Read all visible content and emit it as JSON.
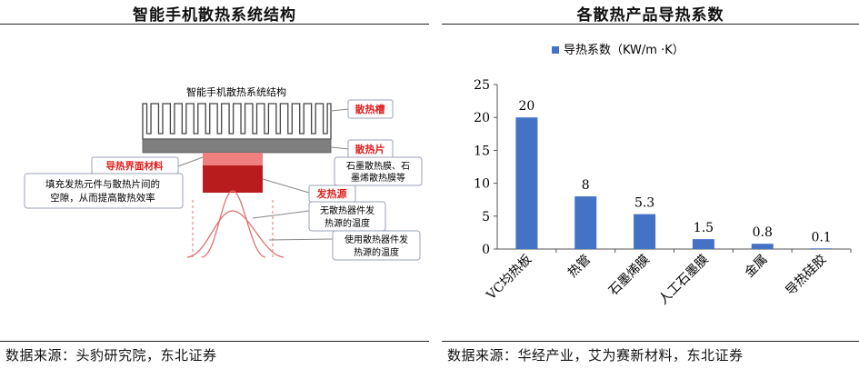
{
  "left": {
    "title": "智能手机散热系统结构",
    "source": "数据来源：头豹研究院，东北证券",
    "diagram": {
      "heading": "智能手机散热系统结构",
      "label_fins": "散热槽",
      "label_plate": "散热片",
      "label_plate_desc_1": "石墨散热膜、石",
      "label_plate_desc_2": "墨烯散热膜等",
      "label_interface": "导热界面材料",
      "label_interface_desc_1": "填充发热元件与散热片间的",
      "label_interface_desc_2": "空隙，从而提高散热效率",
      "label_source": "发热源",
      "label_no_device_1": "无散热器件发",
      "label_no_device_2": "热源的温度",
      "label_with_device_1": "使用散热器件发",
      "label_with_device_2": "热源的温度"
    },
    "colors": {
      "red": "#e02020",
      "dark_red": "#b81c1c",
      "pink": "#f08080",
      "gray": "#7f7f7f"
    }
  },
  "right": {
    "title": "各散热产品导热系数",
    "source": "数据来源：华经产业，艾为赛新材料，东北证券",
    "chart_data": {
      "type": "bar",
      "legend": "导热系数（KW/m ·K）",
      "legend_position": "top",
      "categories": [
        "VC均热板",
        "热管",
        "石墨烯膜",
        "人工石墨膜",
        "金属",
        "导热硅胶"
      ],
      "values": [
        20,
        8,
        5.3,
        1.5,
        0.8,
        0.1
      ],
      "value_labels": [
        "20",
        "8",
        "5.3",
        "1.5",
        "0.8",
        "0.1"
      ],
      "yticks": [
        "0",
        "5",
        "10",
        "15",
        "20",
        "25"
      ],
      "ylim": [
        0,
        25
      ],
      "grid": false,
      "bar_color": "#4472c4"
    }
  }
}
